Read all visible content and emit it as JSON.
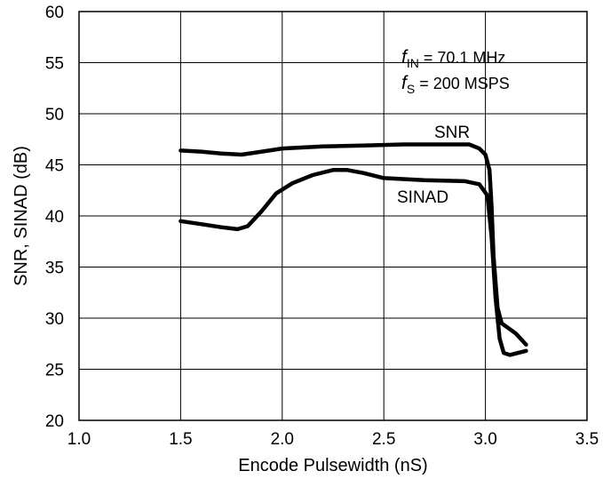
{
  "chart_data": {
    "type": "line",
    "xlabel": "Encode Pulsewidth (nS)",
    "ylabel": "SNR, SINAD (dB)",
    "xlim": [
      1.0,
      3.5
    ],
    "ylim": [
      20,
      60
    ],
    "x_ticks": [
      "1.0",
      "1.5",
      "2.0",
      "2.5",
      "3.0",
      "3.5"
    ],
    "y_ticks": [
      "20",
      "25",
      "30",
      "35",
      "40",
      "45",
      "50",
      "55",
      "60"
    ],
    "grid": true,
    "annotations": {
      "fin_symbol": "f",
      "fin_sub": "IN",
      "fin_value": " = 70.1 MHz",
      "fs_symbol": "f",
      "fs_sub": "S",
      "fs_value": " = 200 MSPS"
    },
    "series": [
      {
        "name": "SNR",
        "points": [
          [
            1.5,
            46.4
          ],
          [
            1.6,
            46.3
          ],
          [
            1.7,
            46.1
          ],
          [
            1.8,
            46.0
          ],
          [
            1.9,
            46.3
          ],
          [
            2.0,
            46.6
          ],
          [
            2.2,
            46.8
          ],
          [
            2.4,
            46.9
          ],
          [
            2.6,
            47.0
          ],
          [
            2.8,
            47.0
          ],
          [
            2.92,
            47.0
          ],
          [
            2.97,
            46.6
          ],
          [
            3.0,
            46.0
          ],
          [
            3.02,
            44.5
          ],
          [
            3.03,
            41.0
          ],
          [
            3.04,
            36.0
          ],
          [
            3.06,
            31.0
          ],
          [
            3.08,
            29.5
          ],
          [
            3.15,
            28.5
          ],
          [
            3.2,
            27.4
          ]
        ]
      },
      {
        "name": "SINAD",
        "points": [
          [
            1.5,
            39.5
          ],
          [
            1.6,
            39.2
          ],
          [
            1.7,
            38.9
          ],
          [
            1.78,
            38.7
          ],
          [
            1.83,
            39.0
          ],
          [
            1.9,
            40.5
          ],
          [
            1.97,
            42.2
          ],
          [
            2.05,
            43.2
          ],
          [
            2.15,
            44.0
          ],
          [
            2.25,
            44.5
          ],
          [
            2.32,
            44.5
          ],
          [
            2.4,
            44.2
          ],
          [
            2.5,
            43.7
          ],
          [
            2.7,
            43.5
          ],
          [
            2.9,
            43.4
          ],
          [
            2.97,
            43.1
          ],
          [
            3.01,
            42.0
          ],
          [
            3.03,
            38.0
          ],
          [
            3.05,
            32.0
          ],
          [
            3.07,
            28.0
          ],
          [
            3.09,
            26.6
          ],
          [
            3.12,
            26.4
          ],
          [
            3.2,
            26.8
          ]
        ]
      }
    ]
  }
}
